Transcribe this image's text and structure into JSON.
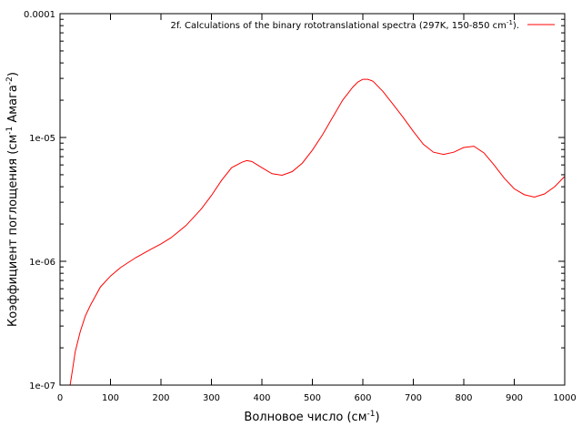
{
  "chart_data": {
    "type": "line",
    "xlabel": {
      "main": "Волновое число (см",
      "sup": "-1",
      "end": ")"
    },
    "ylabel": {
      "p1": "Коэффициент поглощения (см",
      "s1": "-1",
      "p2": " Амага",
      "s2": "-2",
      "p3": ")"
    },
    "xlim": [
      0,
      1000
    ],
    "ylim": [
      1e-07,
      0.0001
    ],
    "yscale": "log",
    "x_ticks": [
      "0",
      "100",
      "200",
      "300",
      "400",
      "500",
      "600",
      "700",
      "800",
      "900",
      "1000"
    ],
    "y_ticks": [
      "1e-07",
      "1e-06",
      "1e-05",
      "0.0001"
    ],
    "grid": false,
    "legend_position": "top-right",
    "series": [
      {
        "name": "2f. Calculations of the binary rototranslational spectra  (297K, 150-850 cm-1).",
        "color": "#ff0000",
        "x": [
          20,
          25,
          30,
          40,
          50,
          60,
          80,
          100,
          120,
          150,
          180,
          200,
          220,
          250,
          280,
          300,
          320,
          340,
          360,
          370,
          380,
          400,
          420,
          440,
          460,
          480,
          500,
          520,
          540,
          560,
          580,
          590,
          600,
          610,
          620,
          640,
          660,
          680,
          700,
          720,
          740,
          760,
          780,
          800,
          820,
          840,
          860,
          880,
          900,
          920,
          940,
          960,
          980,
          1000
        ],
        "y": [
          9.5e-08,
          1.35e-07,
          1.85e-07,
          2.7e-07,
          3.6e-07,
          4.4e-07,
          6.2e-07,
          7.6e-07,
          8.9e-07,
          1.07e-06,
          1.25e-06,
          1.38e-06,
          1.55e-06,
          1.95e-06,
          2.65e-06,
          3.4e-06,
          4.5e-06,
          5.7e-06,
          6.3e-06,
          6.5e-06,
          6.4e-06,
          5.7e-06,
          5.1e-06,
          4.95e-06,
          5.3e-06,
          6.2e-06,
          7.9e-06,
          1.05e-05,
          1.45e-05,
          2e-05,
          2.55e-05,
          2.8e-05,
          2.95e-05,
          2.95e-05,
          2.85e-05,
          2.35e-05,
          1.85e-05,
          1.45e-05,
          1.12e-05,
          8.8e-06,
          7.6e-06,
          7.3e-06,
          7.6e-06,
          8.3e-06,
          8.5e-06,
          7.5e-06,
          6e-06,
          4.7e-06,
          3.85e-06,
          3.45e-06,
          3.3e-06,
          3.5e-06,
          4e-06,
          4.85e-06
        ]
      }
    ]
  },
  "legend": {
    "text_main": "2f. Calculations of the binary rototranslational spectra  (297K, 150-850 cm",
    "text_sup": "-1",
    "text_end": ")."
  }
}
